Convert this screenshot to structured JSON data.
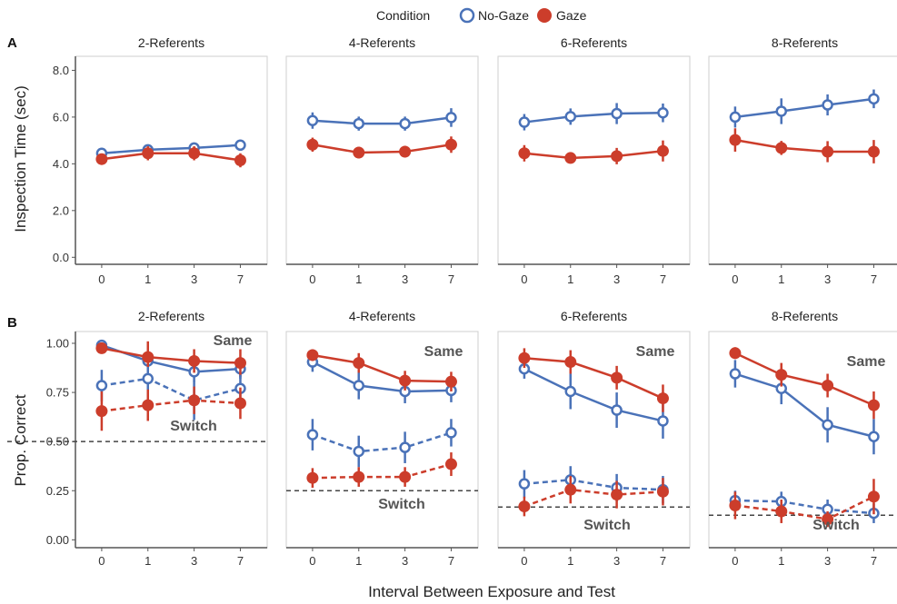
{
  "legend": {
    "title": "Condition",
    "items": [
      {
        "label": "No-Gaze",
        "color": "#4a72b8",
        "marker": "open-circle"
      },
      {
        "label": "Gaze",
        "color": "#cc3d2b",
        "marker": "filled-circle"
      }
    ]
  },
  "xlabel": "Interval Between Exposure and Test",
  "chart_data": [
    {
      "panel": "A",
      "type": "line",
      "ylabel": "Inspection Time (sec)",
      "ylim": [
        -0.3,
        8.6
      ],
      "yticks": [
        "0.0",
        "2.0",
        "4.0",
        "6.0",
        "8.0"
      ],
      "ytick_values": [
        0,
        2,
        4,
        6,
        8
      ],
      "categories": [
        "0",
        "1",
        "3",
        "7"
      ],
      "facets": [
        {
          "title": "2-Referents",
          "series": [
            {
              "name": "No-Gaze",
              "values": [
                4.45,
                4.6,
                4.68,
                4.8
              ],
              "err": [
                0.12,
                0.15,
                0.18,
                0.2
              ]
            },
            {
              "name": "Gaze",
              "values": [
                4.2,
                4.45,
                4.45,
                4.15
              ],
              "err": [
                0.12,
                0.3,
                0.3,
                0.3
              ]
            }
          ]
        },
        {
          "title": "4-Referents",
          "series": [
            {
              "name": "No-Gaze",
              "values": [
                5.85,
                5.72,
                5.72,
                5.98
              ],
              "err": [
                0.35,
                0.3,
                0.3,
                0.4
              ]
            },
            {
              "name": "Gaze",
              "values": [
                4.82,
                4.48,
                4.52,
                4.82
              ],
              "err": [
                0.3,
                0.25,
                0.25,
                0.35
              ]
            }
          ]
        },
        {
          "title": "6-Referents",
          "series": [
            {
              "name": "No-Gaze",
              "values": [
                5.78,
                6.02,
                6.15,
                6.18
              ],
              "err": [
                0.35,
                0.35,
                0.45,
                0.4
              ]
            },
            {
              "name": "Gaze",
              "values": [
                4.45,
                4.25,
                4.33,
                4.55
              ],
              "err": [
                0.35,
                0.2,
                0.35,
                0.45
              ]
            }
          ]
        },
        {
          "title": "8-Referents",
          "series": [
            {
              "name": "No-Gaze",
              "values": [
                6.0,
                6.25,
                6.52,
                6.78
              ],
              "err": [
                0.45,
                0.55,
                0.45,
                0.4
              ]
            },
            {
              "name": "Gaze",
              "values": [
                5.02,
                4.68,
                4.52,
                4.52
              ],
              "err": [
                0.5,
                0.3,
                0.45,
                0.5
              ]
            }
          ]
        }
      ]
    },
    {
      "panel": "B",
      "type": "line",
      "ylabel": "Prop. Correct",
      "ylim": [
        -0.04,
        1.06
      ],
      "yticks": [
        "0.00",
        "0.25",
        "0.50",
        "0.75",
        "1.00"
      ],
      "ytick_values": [
        0,
        0.25,
        0.5,
        0.75,
        1.0
      ],
      "categories": [
        "0",
        "1",
        "3",
        "7"
      ],
      "labels": {
        "same": "Same",
        "switch": "Switch"
      },
      "facets": [
        {
          "title": "2-Referents",
          "chance": 0.5,
          "series": [
            {
              "name": "No-Gaze",
              "trial": "Same",
              "values": [
                0.99,
                0.91,
                0.855,
                0.87
              ],
              "err": [
                0.01,
                0.05,
                0.05,
                0.05
              ]
            },
            {
              "name": "Gaze",
              "trial": "Same",
              "values": [
                0.975,
                0.93,
                0.91,
                0.9
              ],
              "err": [
                0.01,
                0.08,
                0.06,
                0.07
              ]
            },
            {
              "name": "No-Gaze",
              "trial": "Switch",
              "values": [
                0.785,
                0.82,
                0.71,
                0.77
              ],
              "err": [
                0.08,
                0.06,
                0.1,
                0.07
              ]
            },
            {
              "name": "Gaze",
              "trial": "Switch",
              "values": [
                0.655,
                0.685,
                0.71,
                0.695
              ],
              "err": [
                0.1,
                0.08,
                0.07,
                0.08
              ]
            }
          ]
        },
        {
          "title": "4-Referents",
          "chance": 0.25,
          "series": [
            {
              "name": "No-Gaze",
              "trial": "Same",
              "values": [
                0.905,
                0.785,
                0.755,
                0.76
              ],
              "err": [
                0.05,
                0.07,
                0.06,
                0.06
              ]
            },
            {
              "name": "Gaze",
              "trial": "Same",
              "values": [
                0.94,
                0.9,
                0.81,
                0.805
              ],
              "err": [
                0.03,
                0.05,
                0.05,
                0.05
              ]
            },
            {
              "name": "No-Gaze",
              "trial": "Switch",
              "values": [
                0.535,
                0.45,
                0.47,
                0.545
              ],
              "err": [
                0.08,
                0.08,
                0.08,
                0.07
              ]
            },
            {
              "name": "Gaze",
              "trial": "Switch",
              "values": [
                0.315,
                0.32,
                0.32,
                0.385
              ],
              "err": [
                0.05,
                0.05,
                0.05,
                0.06
              ]
            }
          ]
        },
        {
          "title": "6-Referents",
          "chance": 0.1667,
          "series": [
            {
              "name": "No-Gaze",
              "trial": "Same",
              "values": [
                0.87,
                0.755,
                0.66,
                0.605
              ],
              "err": [
                0.05,
                0.09,
                0.09,
                0.09
              ]
            },
            {
              "name": "Gaze",
              "trial": "Same",
              "values": [
                0.925,
                0.905,
                0.825,
                0.72
              ],
              "err": [
                0.05,
                0.06,
                0.06,
                0.07
              ]
            },
            {
              "name": "No-Gaze",
              "trial": "Switch",
              "values": [
                0.285,
                0.305,
                0.265,
                0.255
              ],
              "err": [
                0.07,
                0.07,
                0.07,
                0.07
              ]
            },
            {
              "name": "Gaze",
              "trial": "Switch",
              "values": [
                0.17,
                0.255,
                0.23,
                0.245
              ],
              "err": [
                0.05,
                0.07,
                0.07,
                0.07
              ]
            }
          ]
        },
        {
          "title": "8-Referents",
          "chance": 0.125,
          "series": [
            {
              "name": "No-Gaze",
              "trial": "Same",
              "values": [
                0.845,
                0.77,
                0.585,
                0.525
              ],
              "err": [
                0.07,
                0.08,
                0.09,
                0.09
              ]
            },
            {
              "name": "Gaze",
              "trial": "Same",
              "values": [
                0.95,
                0.84,
                0.785,
                0.685
              ],
              "err": [
                0.03,
                0.06,
                0.06,
                0.07
              ]
            },
            {
              "name": "No-Gaze",
              "trial": "Switch",
              "values": [
                0.2,
                0.195,
                0.155,
                0.135
              ],
              "err": [
                0.05,
                0.05,
                0.05,
                0.05
              ]
            },
            {
              "name": "Gaze",
              "trial": "Switch",
              "values": [
                0.175,
                0.145,
                0.105,
                0.22
              ],
              "err": [
                0.07,
                0.06,
                0.04,
                0.09
              ]
            }
          ]
        }
      ]
    }
  ]
}
